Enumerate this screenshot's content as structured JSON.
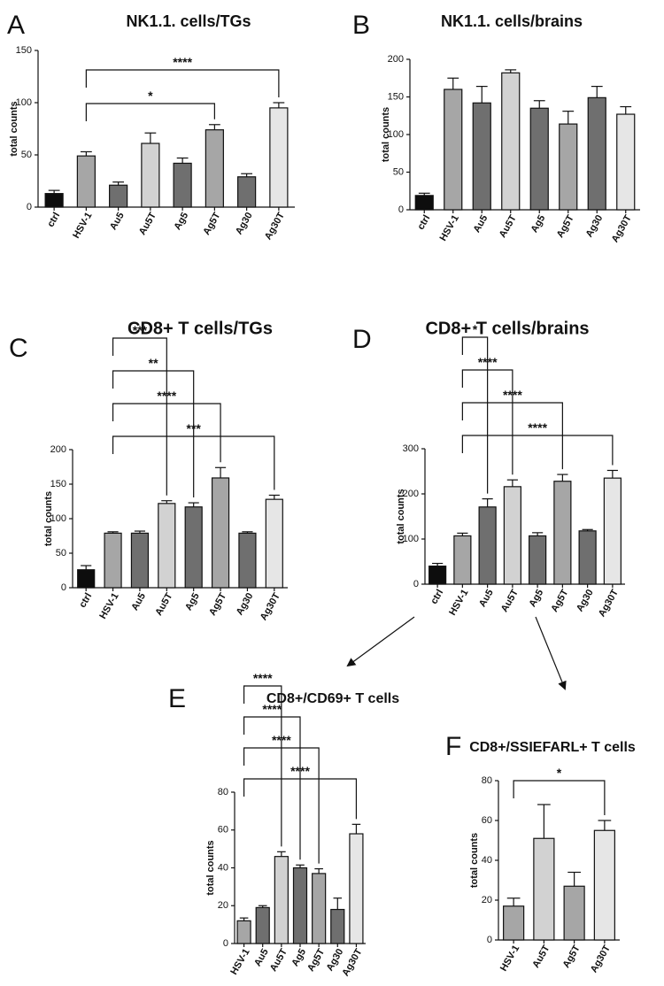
{
  "colors": {
    "ctrl": "#0d0d0d",
    "HSV-1": "#a6a6a6",
    "Au5": "#6f6f6f",
    "Au5T": "#d2d2d2",
    "Ag5": "#6f6f6f",
    "Ag5T": "#a6a6a6",
    "Ag30": "#6f6f6f",
    "Ag30T": "#e6e6e6"
  },
  "chart_data": [
    {
      "panel": "A",
      "type": "bar",
      "title": "NK1.1. cells/TGs",
      "ylabel": "total counts",
      "ylim": [
        0,
        150
      ],
      "yticks": [
        0,
        50,
        100,
        150
      ],
      "categories": [
        "ctrl",
        "HSV-1",
        "Au5",
        "Au5T",
        "Ag5",
        "Ag5T",
        "Ag30",
        "Ag30T"
      ],
      "values": [
        13,
        49,
        21,
        61,
        42,
        74,
        29,
        95
      ],
      "errors": [
        3,
        4,
        3,
        10,
        5,
        5,
        3,
        5
      ],
      "comparisons": [
        {
          "from": "HSV-1",
          "to": "Ag5T",
          "label": "*"
        },
        {
          "from": "HSV-1",
          "to": "Ag30T",
          "label": "****"
        }
      ]
    },
    {
      "panel": "B",
      "type": "bar",
      "title": "NK1.1. cells/brains",
      "ylabel": "total counts",
      "ylim": [
        0,
        200
      ],
      "yticks": [
        0,
        50,
        100,
        150,
        200
      ],
      "categories": [
        "ctrl",
        "HSV-1",
        "Au5",
        "Au5T",
        "Ag5",
        "Ag5T",
        "Ag30",
        "Ag30T"
      ],
      "values": [
        19,
        160,
        142,
        182,
        135,
        114,
        149,
        127
      ],
      "errors": [
        3,
        15,
        22,
        4,
        10,
        17,
        15,
        10
      ],
      "comparisons": []
    },
    {
      "panel": "C",
      "type": "bar",
      "title": "CD8+ T cells/TGs",
      "ylabel": "total counts",
      "ylim": [
        0,
        200
      ],
      "yticks": [
        0,
        50,
        100,
        150,
        200
      ],
      "categories": [
        "ctrl",
        "HSV-1",
        "Au5",
        "Au5T",
        "Ag5",
        "Ag5T",
        "Ag30",
        "Ag30T"
      ],
      "values": [
        26,
        79,
        79,
        122,
        117,
        159,
        79,
        128
      ],
      "errors": [
        6,
        2,
        3,
        4,
        6,
        15,
        2,
        6
      ],
      "comparisons": [
        {
          "from": "HSV-1",
          "to": "Au5T",
          "label": "***"
        },
        {
          "from": "HSV-1",
          "to": "Ag5",
          "label": "**"
        },
        {
          "from": "HSV-1",
          "to": "Ag5T",
          "label": "****"
        },
        {
          "from": "HSV-1",
          "to": "Ag30T",
          "label": "***"
        }
      ]
    },
    {
      "panel": "D",
      "type": "bar",
      "title": "CD8+ T cells/brains",
      "ylabel": "total counts",
      "ylim": [
        0,
        300
      ],
      "yticks": [
        0,
        100,
        200,
        300
      ],
      "categories": [
        "ctrl",
        "HSV-1",
        "Au5",
        "Au5T",
        "Ag5",
        "Ag5T",
        "Ag30",
        "Ag30T"
      ],
      "values": [
        40,
        107,
        171,
        216,
        107,
        228,
        118,
        235
      ],
      "errors": [
        6,
        6,
        18,
        15,
        7,
        15,
        3,
        17
      ],
      "comparisons": [
        {
          "from": "HSV-1",
          "to": "Au5",
          "label": "*"
        },
        {
          "from": "HSV-1",
          "to": "Au5T",
          "label": "****"
        },
        {
          "from": "HSV-1",
          "to": "Ag5T",
          "label": "****"
        },
        {
          "from": "HSV-1",
          "to": "Ag30T",
          "label": "****"
        }
      ]
    },
    {
      "panel": "E",
      "type": "bar",
      "title": "CD8+/CD69+ T cells",
      "ylabel": "total counts",
      "ylim": [
        0,
        80
      ],
      "yticks": [
        0,
        20,
        40,
        60,
        80
      ],
      "categories": [
        "HSV-1",
        "Au5",
        "Au5T",
        "Ag5",
        "Ag5T",
        "Ag30",
        "Ag30T"
      ],
      "values": [
        12,
        19,
        46,
        40,
        37,
        18,
        58
      ],
      "errors": [
        1.5,
        1,
        2.5,
        1.5,
        2.5,
        6,
        5
      ],
      "comparisons": [
        {
          "from": "HSV-1",
          "to": "Au5T",
          "label": "****"
        },
        {
          "from": "HSV-1",
          "to": "Ag5",
          "label": "****"
        },
        {
          "from": "HSV-1",
          "to": "Ag5T",
          "label": "****"
        },
        {
          "from": "HSV-1",
          "to": "Ag30T",
          "label": "****"
        }
      ]
    },
    {
      "panel": "F",
      "type": "bar",
      "title": "CD8+/SSIEFARL+ T cells",
      "ylabel": "total counts",
      "ylim": [
        0,
        80
      ],
      "yticks": [
        0,
        20,
        40,
        60,
        80
      ],
      "categories": [
        "HSV-1",
        "Au5T",
        "Ag5T",
        "Ag30T"
      ],
      "values": [
        17,
        51,
        27,
        55
      ],
      "errors": [
        4,
        17,
        7,
        5
      ],
      "comparisons": [
        {
          "from": "HSV-1",
          "to": "Ag30T",
          "label": "*"
        }
      ]
    }
  ]
}
